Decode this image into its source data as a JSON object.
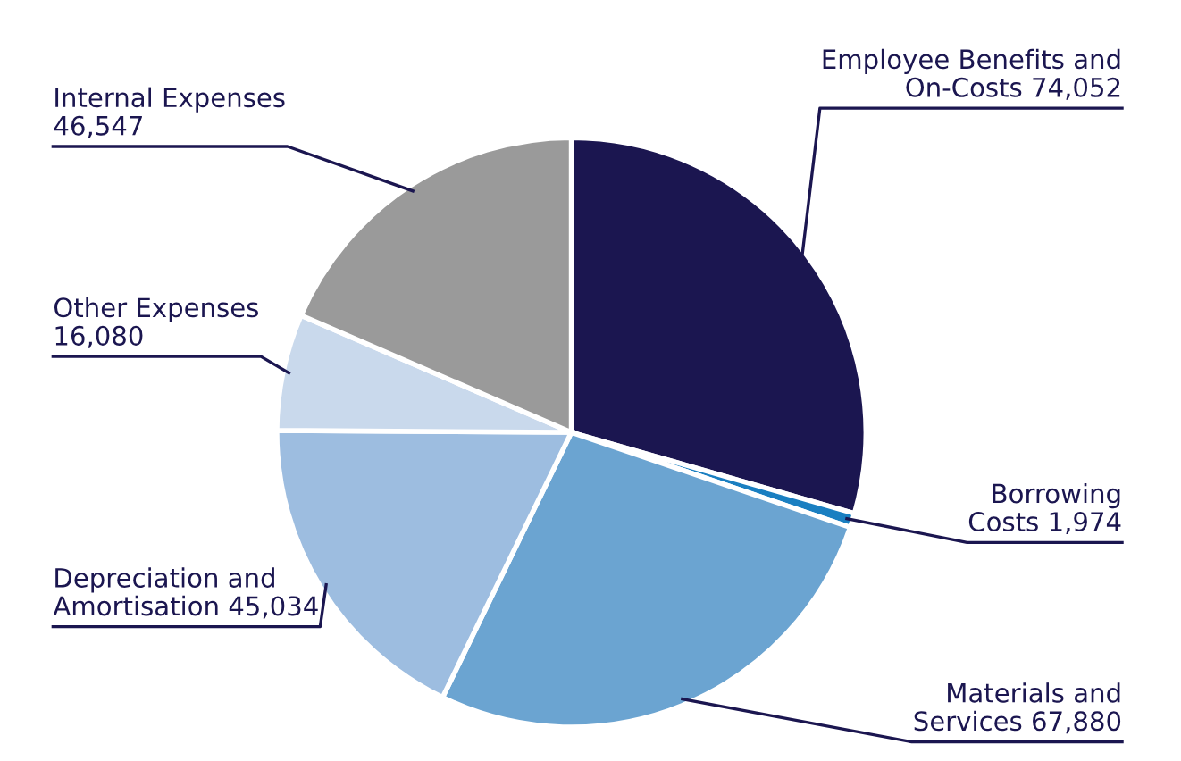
{
  "chart_data": {
    "type": "pie",
    "categories": [
      "Employee Benefits and\nOn-Costs",
      "Borrowing\nCosts",
      "Materials and\nServices",
      "Depreciation and\nAmortisation",
      "Other Expenses",
      "Internal Expenses"
    ],
    "values": [
      74052,
      1974,
      67880,
      45034,
      16080,
      46547
    ],
    "value_labels": [
      "74,052",
      "1,974",
      "67,880",
      "45,034",
      "16,080",
      "46,547"
    ],
    "colors": [
      "#1b1650",
      "#1a7fc1",
      "#6ba4d1",
      "#9dbde0",
      "#c9d9ec",
      "#9a9a9a"
    ],
    "legend": false
  }
}
